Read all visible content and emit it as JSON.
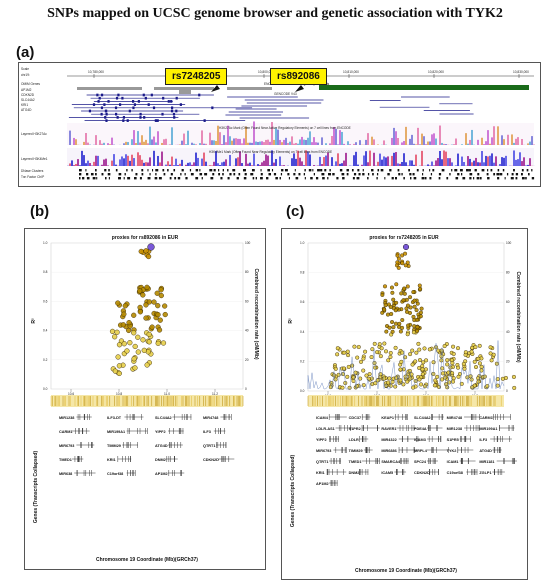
{
  "figure_title": "SNPs mapped on UCSC genome browser and genetic association with TYK2",
  "panels": {
    "a": {
      "label": "(a)",
      "snp_left": "rs7248205",
      "snp_right": "rs892086",
      "tracks": [
        "Scale",
        "chr19:",
        "OMIM Genes",
        "AP1M2",
        "CDKN2D",
        "SLC44A2",
        "KRI1",
        "ATG4D",
        "Layered H3K27Ac",
        "Layered H3K4Me1",
        "DNase Clusters",
        "Txn Factor ChIP"
      ],
      "ruler_ticks": [
        "10,780,000",
        "10,790,000",
        "10,800,000",
        "10,810,000",
        "10,820,000",
        "10,830,000"
      ],
      "notes": [
        "ENCODE Candidate Cis-Regulatory Elements",
        "GENCODE V43",
        "H3K27Ac Mark (Often Found Near Active Regulatory Elements) on 7 cell lines from ENCODE",
        "H3K4Me1 Mark (Often Found Near Regulatory Elements) on 7 cell lines from ENCODE"
      ]
    },
    "b": {
      "label": "(b)",
      "plot_title": "proxies for rs892086 in EUR",
      "ylabel": "R²",
      "y2label": "Combined recombination rate (cM/Mb)",
      "xlabel": "Chromosome 19 Coordinate (Mb)(GRCh37)",
      "genes_label": "Genes (Transcripts Collapsed)",
      "genes": [
        "MIR1238",
        "ILF3-DT",
        "SLC44A2",
        "MIR4748",
        "CARM1",
        "MIR199A1",
        "YIPF2",
        "ILF3",
        "MIR6793",
        "TIMM29",
        "ATG4D",
        "QTRT1",
        "TMED1",
        "KRI1",
        "DNM2",
        "CDKN2D",
        "MIR638",
        "C19orf38",
        "AP1M2"
      ]
    },
    "c": {
      "label": "(c)",
      "plot_title": "proxies for rs7248205 in EUR",
      "ylabel": "R²",
      "y2label": "Combined recombination rate (cM/Mb)",
      "xlabel": "Chromosome 19 Coordinate (Mb)(GRCh37)",
      "genes_label": "Genes (Transcripts Collapsed)",
      "genes": [
        "ICAM4",
        "CDC37",
        "KEAP1",
        "SLC44A2",
        "MIR4748",
        "CARM1",
        "LDLR-AS1",
        "S1PR2",
        "RAVER1",
        "PDE4A",
        "MIR1238",
        "MIR199A1",
        "YIPF2",
        "LDLR",
        "MIR4322",
        "ICAM3",
        "S1PR5",
        "ILF3",
        "MIR6793",
        "TIMM29",
        "MIR6886",
        "MRPL4",
        "TYK2",
        "ATG4D",
        "QTRT1",
        "TMED1",
        "SMARCA4",
        "SPC24",
        "ICAM1",
        "MIR1181",
        "KRI1",
        "DNM2",
        "ICAM5",
        "CDKN2D",
        "C19orf38",
        "ZGLP1",
        "AP1M2"
      ]
    }
  },
  "colors": {
    "yellow_box": "#fff200",
    "dark_green": "#1a6b1a",
    "navy": "#1b1b8a",
    "scatter_dark": "#2b1a00",
    "scatter_light": "#f2e27a"
  }
}
